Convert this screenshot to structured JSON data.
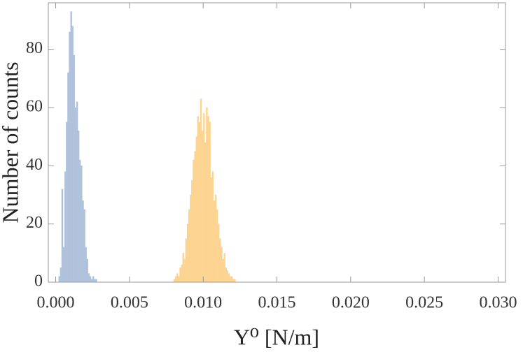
{
  "chart_data": {
    "type": "histogram",
    "x_label": "Υ⁰ [N/m]",
    "y_label": "Number of counts",
    "xlim": [
      -0.0005,
      0.0305
    ],
    "ylim": [
      0,
      96
    ],
    "xticks": [
      {
        "value": 0,
        "label": "0.000"
      },
      {
        "value": 0.005,
        "label": "0.005"
      },
      {
        "value": 0.01,
        "label": "0.010"
      },
      {
        "value": 0.015,
        "label": "0.015"
      },
      {
        "value": 0.02,
        "label": "0.020"
      },
      {
        "value": 0.025,
        "label": "0.025"
      },
      {
        "value": 0.03,
        "label": "0.030"
      }
    ],
    "yticks": [
      0,
      20,
      40,
      60,
      80
    ],
    "series": [
      {
        "color": "#b0c1db",
        "bins": [
          0.0002,
          0.0003,
          0.0004,
          0.0005,
          0.0006,
          0.0007,
          0.0008,
          0.0009,
          0.001,
          0.0011,
          0.0012,
          0.0013,
          0.0014,
          0.0015,
          0.0016,
          0.0017,
          0.0018,
          0.0019,
          0.002,
          0.0021,
          0.0022,
          0.0023,
          0.0024,
          0.0025,
          0.0026,
          0.0027,
          0.0028
        ],
        "values": [
          2,
          5,
          32,
          12,
          38,
          55,
          72,
          86,
          93,
          88,
          78,
          60,
          62,
          52,
          42,
          40,
          28,
          25,
          12,
          8,
          3,
          2,
          1,
          2,
          1,
          1
        ]
      },
      {
        "color": "#fcd491",
        "bins": [
          0.008,
          0.0081,
          0.0082,
          0.0083,
          0.0084,
          0.0085,
          0.0086,
          0.0087,
          0.0088,
          0.0089,
          0.009,
          0.0091,
          0.0092,
          0.0093,
          0.0094,
          0.0095,
          0.0096,
          0.0097,
          0.0098,
          0.0099,
          0.01,
          0.0101,
          0.0102,
          0.0103,
          0.0104,
          0.0105,
          0.0106,
          0.0107,
          0.0108,
          0.0109,
          0.011,
          0.0111,
          0.0112,
          0.0113,
          0.0114,
          0.0115,
          0.0116,
          0.0117,
          0.0118,
          0.0119,
          0.012,
          0.0121,
          0.0122
        ],
        "values": [
          1,
          2,
          3,
          2,
          5,
          6,
          10,
          8,
          15,
          20,
          25,
          30,
          35,
          42,
          45,
          50,
          57,
          55,
          63,
          52,
          58,
          48,
          60,
          57,
          55,
          36,
          38,
          28,
          30,
          25,
          20,
          15,
          12,
          8,
          10,
          5,
          4,
          3,
          2,
          2,
          1,
          1
        ]
      }
    ]
  }
}
